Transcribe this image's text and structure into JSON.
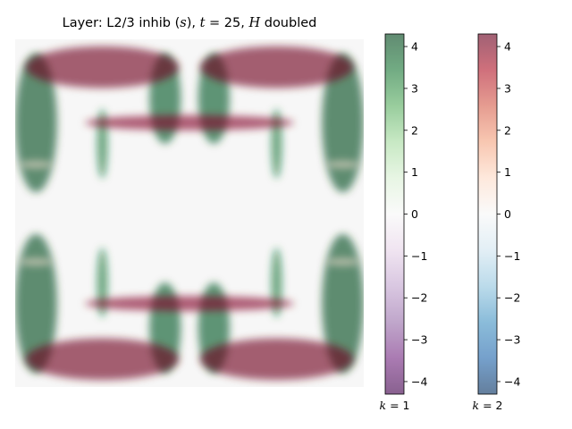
{
  "chart_data": {
    "type": "heatmap",
    "title": {
      "prefix": "Layer: L2/3 inhib (",
      "var_s": "s",
      "mid": "), ",
      "var_t": "t",
      "eq": " = 25, ",
      "var_H": "H",
      "suffix": " doubled"
    },
    "grid": false,
    "layers": [
      {
        "name": "k=1",
        "colormap": "PRGn",
        "blobs": [
          {
            "cx": 0.06,
            "cy": 0.24,
            "rx": 0.06,
            "ry": 0.2,
            "value": 4.2
          },
          {
            "cx": 0.94,
            "cy": 0.24,
            "rx": 0.06,
            "ry": 0.2,
            "value": 4.2
          },
          {
            "cx": 0.06,
            "cy": 0.76,
            "rx": 0.06,
            "ry": 0.2,
            "value": 4.2
          },
          {
            "cx": 0.94,
            "cy": 0.76,
            "rx": 0.06,
            "ry": 0.2,
            "value": 4.2
          },
          {
            "cx": 0.43,
            "cy": 0.17,
            "rx": 0.045,
            "ry": 0.13,
            "value": 4.0
          },
          {
            "cx": 0.57,
            "cy": 0.17,
            "rx": 0.045,
            "ry": 0.13,
            "value": 4.0
          },
          {
            "cx": 0.43,
            "cy": 0.83,
            "rx": 0.045,
            "ry": 0.13,
            "value": 4.0
          },
          {
            "cx": 0.57,
            "cy": 0.83,
            "rx": 0.045,
            "ry": 0.13,
            "value": 4.0
          },
          {
            "cx": 0.25,
            "cy": 0.3,
            "rx": 0.015,
            "ry": 0.1,
            "value": 3.5
          },
          {
            "cx": 0.75,
            "cy": 0.3,
            "rx": 0.015,
            "ry": 0.1,
            "value": 3.5
          },
          {
            "cx": 0.25,
            "cy": 0.7,
            "rx": 0.015,
            "ry": 0.1,
            "value": 3.5
          },
          {
            "cx": 0.75,
            "cy": 0.7,
            "rx": 0.015,
            "ry": 0.1,
            "value": 3.5
          }
        ]
      },
      {
        "name": "k=2",
        "colormap": "RdBu",
        "blobs": [
          {
            "cx": 0.25,
            "cy": 0.08,
            "rx": 0.22,
            "ry": 0.06,
            "value": 4.2
          },
          {
            "cx": 0.75,
            "cy": 0.08,
            "rx": 0.22,
            "ry": 0.06,
            "value": 4.2
          },
          {
            "cx": 0.25,
            "cy": 0.92,
            "rx": 0.22,
            "ry": 0.06,
            "value": 4.2
          },
          {
            "cx": 0.75,
            "cy": 0.92,
            "rx": 0.22,
            "ry": 0.06,
            "value": 4.2
          },
          {
            "cx": 0.5,
            "cy": 0.24,
            "rx": 0.3,
            "ry": 0.022,
            "value": 4.0
          },
          {
            "cx": 0.5,
            "cy": 0.76,
            "rx": 0.3,
            "ry": 0.022,
            "value": 4.0
          },
          {
            "cx": 0.06,
            "cy": 0.36,
            "rx": 0.05,
            "ry": 0.01,
            "value": 0.6
          },
          {
            "cx": 0.94,
            "cy": 0.36,
            "rx": 0.05,
            "ry": 0.01,
            "value": 0.6
          },
          {
            "cx": 0.06,
            "cy": 0.64,
            "rx": 0.05,
            "ry": 0.01,
            "value": 0.6
          },
          {
            "cx": 0.94,
            "cy": 0.64,
            "rx": 0.05,
            "ry": 0.01,
            "value": 0.6
          }
        ]
      }
    ],
    "colorbars": [
      {
        "colormap": "PRGn",
        "label_var": "k",
        "label_eq": " = 1",
        "range": [
          -4.3,
          4.3
        ],
        "ticks": [
          4,
          3,
          2,
          1,
          0,
          -1,
          -2,
          -3,
          -4
        ],
        "tick_labels": [
          "4",
          "3",
          "2",
          "1",
          "0",
          "−1",
          "−2",
          "−3",
          "−4"
        ]
      },
      {
        "colormap": "RdBu",
        "label_var": "k",
        "label_eq": " = 2",
        "range": [
          -4.3,
          4.3
        ],
        "ticks": [
          4,
          3,
          2,
          1,
          0,
          -1,
          -2,
          -3,
          -4
        ],
        "tick_labels": [
          "4",
          "3",
          "2",
          "1",
          "0",
          "−1",
          "−2",
          "−3",
          "−4"
        ]
      }
    ],
    "colormaps": {
      "PRGn": [
        "#40004b",
        "#762a83",
        "#9970ab",
        "#c2a5cf",
        "#e7d4e8",
        "#f7f7f7",
        "#d9f0d3",
        "#a6dba0",
        "#5aae61",
        "#1b7837",
        "#00441b"
      ],
      "RdBu": [
        "#053061",
        "#2166ac",
        "#4393c3",
        "#92c5de",
        "#d1e5f0",
        "#f7f7f7",
        "#fddbc7",
        "#f4a582",
        "#d6604d",
        "#b2182b",
        "#67001f"
      ]
    }
  }
}
